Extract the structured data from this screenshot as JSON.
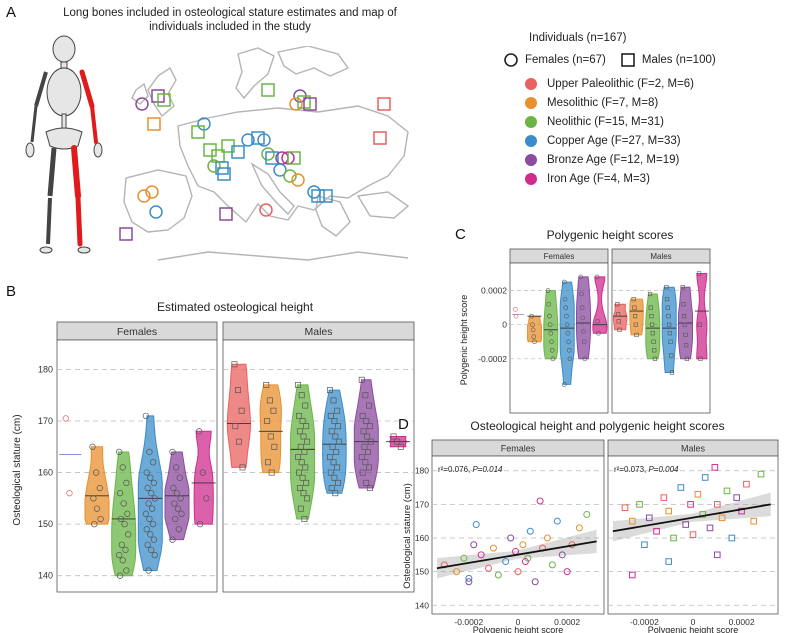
{
  "panel_a": {
    "letter": "A",
    "title_line1": "Long bones included in osteological stature estimates and map of",
    "title_line2": "individuals included in the study"
  },
  "legend": {
    "title": "Individuals (n=167)",
    "females": "Females (n=67)",
    "males": "Males (n=100)",
    "periods": [
      {
        "label": "Upper Paleolithic (F=2, M=6)",
        "color": "#e8615f"
      },
      {
        "label": "Mesolithic (F=7, M=8)",
        "color": "#e8902e"
      },
      {
        "label": "Neolithic (F=15, M=31)",
        "color": "#6ab545"
      },
      {
        "label": "Copper Age (F=27, M=33)",
        "color": "#3b8dc9"
      },
      {
        "label": "Bronze Age (F=12, M=19)",
        "color": "#8b4b9e"
      },
      {
        "label": "Iron Age (F=4, M=3)",
        "color": "#cf2d8e"
      }
    ]
  },
  "panel_b": {
    "letter": "B",
    "title": "Estimated osteological height",
    "facets": [
      "Females",
      "Males"
    ],
    "ylabel": "Osteological stature (cm)",
    "yticks": [
      "180",
      "170",
      "160",
      "150",
      "140"
    ]
  },
  "panel_c": {
    "letter": "C",
    "title": "Polygenic height scores",
    "facets": [
      "Females",
      "Males"
    ],
    "ylabel": "Polygenic height score",
    "yticks": [
      "0.0002",
      "0",
      "-0.0002"
    ]
  },
  "panel_d": {
    "letter": "D",
    "title": "Osteological height and polygenic height scores",
    "facets": [
      "Females",
      "Males"
    ],
    "ylabel": "Osteological stature (cm)",
    "xlabel": "Polygenic height score",
    "yticks": [
      "180",
      "170",
      "160",
      "150",
      "140"
    ],
    "xticks": [
      "-0.0002",
      "0",
      "0.0002"
    ],
    "stats_f_prefix": "r²=0.076, ",
    "stats_f_p": "P=0.014",
    "stats_m_prefix": "r²=0.073, ",
    "stats_m_p": "P=0.004"
  },
  "chart_data": [
    {
      "type": "violin",
      "title": "Estimated osteological height",
      "ylabel": "Osteological stature (cm)",
      "ylim": [
        138,
        183
      ],
      "facets": [
        {
          "name": "Females",
          "groups": [
            {
              "period": "Upper Paleolithic",
              "median": 163.5,
              "points": [
                170.5,
                156
              ]
            },
            {
              "period": "Mesolithic",
              "median": 155.5,
              "points": [
                165,
                160,
                157,
                155,
                153,
                151,
                150
              ]
            },
            {
              "period": "Neolithic",
              "median": 151,
              "points": [
                164,
                161,
                158,
                156,
                154,
                152,
                151,
                150,
                148,
                146,
                145,
                144,
                143,
                141,
                140
              ]
            },
            {
              "period": "Copper Age",
              "median": 155,
              "points": [
                171,
                164,
                162,
                160,
                159,
                158,
                157,
                156,
                155,
                154,
                153,
                152,
                151,
                150,
                149,
                148,
                147,
                146,
                145,
                144,
                141
              ]
            },
            {
              "period": "Bronze Age",
              "median": 155.5,
              "points": [
                164,
                161,
                159,
                157,
                156,
                155,
                154,
                153,
                152,
                151,
                149,
                147
              ]
            },
            {
              "period": "Iron Age",
              "median": 158,
              "points": [
                168,
                160,
                155,
                150
              ]
            }
          ]
        },
        {
          "name": "Males",
          "groups": [
            {
              "period": "Upper Paleolithic",
              "median": 169.5,
              "points": [
                181,
                176,
                172,
                169,
                166,
                161
              ]
            },
            {
              "period": "Mesolithic",
              "median": 168,
              "points": [
                177,
                174,
                172,
                170,
                167,
                165,
                162,
                160
              ]
            },
            {
              "period": "Neolithic",
              "median": 164.5,
              "points": [
                177,
                175,
                173,
                171,
                170,
                169,
                168,
                167,
                166,
                165,
                164,
                163,
                162,
                161,
                160,
                159,
                158,
                157,
                156,
                155,
                153,
                151
              ]
            },
            {
              "period": "Copper Age",
              "median": 165.5,
              "points": [
                176,
                174,
                172,
                171,
                170,
                169,
                168,
                167,
                166,
                165,
                164,
                163,
                162,
                161,
                160,
                159,
                158,
                157,
                156
              ]
            },
            {
              "period": "Bronze Age",
              "median": 166,
              "points": [
                178,
                175,
                173,
                171,
                170,
                169,
                168,
                167,
                166,
                165,
                164,
                163,
                162,
                161,
                160,
                158,
                157
              ]
            },
            {
              "period": "Iron Age",
              "median": 166,
              "points": [
                167,
                166,
                165
              ]
            }
          ]
        }
      ]
    },
    {
      "type": "violin",
      "title": "Polygenic height scores",
      "ylabel": "Polygenic height score",
      "ylim": [
        -0.0005,
        0.00035
      ],
      "facets": [
        {
          "name": "Females",
          "groups": [
            {
              "period": "Upper Paleolithic",
              "median": 6e-05,
              "points": [
                9e-05,
                5e-05
              ]
            },
            {
              "period": "Mesolithic",
              "median": 5e-05,
              "points": [
                5e-05,
                0.0,
                -3e-05,
                -7e-05,
                -0.0001
              ]
            },
            {
              "period": "Neolithic",
              "median": -3e-05,
              "points": [
                0.0002,
                0.00012,
                5e-05,
                0.0,
                -5e-05,
                -0.0001,
                -0.00015,
                -0.0002
              ]
            },
            {
              "period": "Copper Age",
              "median": -2e-05,
              "points": [
                0.00025,
                0.00015,
                0.0001,
                5e-05,
                0.0,
                -5e-05,
                -0.0001,
                -0.00015,
                -0.0002,
                -0.00035
              ]
            },
            {
              "period": "Bronze Age",
              "median": 1e-05,
              "points": [
                0.00028,
                0.00018,
                0.0001,
                4e-05,
                -4e-05,
                -0.0001,
                -0.0002
              ]
            },
            {
              "period": "Iron Age",
              "median": 0.0,
              "points": [
                0.00028,
                2e-05,
                -5e-05
              ]
            }
          ]
        },
        {
          "name": "Males",
          "groups": [
            {
              "period": "Upper Paleolithic",
              "median": 5e-05,
              "points": [
                0.00012,
                6e-05,
                2e-05,
                -3e-05
              ]
            },
            {
              "period": "Mesolithic",
              "median": 8e-05,
              "points": [
                0.00015,
                0.0001,
                5e-05,
                0.0,
                -6e-05
              ]
            },
            {
              "period": "Neolithic",
              "median": -2e-05,
              "points": [
                0.00018,
                0.0001,
                5e-05,
                0.0,
                -5e-05,
                -0.0001,
                -0.00015,
                -0.0002
              ]
            },
            {
              "period": "Copper Age",
              "median": -2e-05,
              "points": [
                0.00022,
                0.00015,
                0.0001,
                5e-05,
                0.0,
                -5e-05,
                -0.0001,
                -0.00018,
                -0.00028
              ]
            },
            {
              "period": "Bronze Age",
              "median": 1e-05,
              "points": [
                0.00022,
                0.00012,
                5e-05,
                0.0,
                -6e-05,
                -0.00012,
                -0.0002
              ]
            },
            {
              "period": "Iron Age",
              "median": 8e-05,
              "points": [
                0.0003,
                0.0,
                -0.0002
              ]
            }
          ]
        }
      ]
    },
    {
      "type": "scatter",
      "title": "Osteological height and polygenic height scores",
      "xlabel": "Polygenic height score",
      "ylabel": "Osteological stature (cm)",
      "xlim": [
        -0.00035,
        0.00035
      ],
      "ylim": [
        138,
        182
      ],
      "facets": [
        {
          "name": "Females",
          "r2": 0.076,
          "p": 0.014,
          "fit": [
            [
              -0.00033,
              151.0
            ],
            [
              0.00032,
              159.0
            ]
          ],
          "points": [
            [
              -0.0003,
              152
            ],
            [
              -0.00025,
              150
            ],
            [
              -0.00022,
              154
            ],
            [
              -0.0002,
              148
            ],
            [
              -0.00018,
              158
            ],
            [
              -0.00015,
              155
            ],
            [
              -0.00012,
              151
            ],
            [
              -0.0001,
              157
            ],
            [
              -8e-05,
              149
            ],
            [
              -5e-05,
              153
            ],
            [
              -3e-05,
              160
            ],
            [
              -1e-05,
              156
            ],
            [
              0.0,
              150
            ],
            [
              2e-05,
              158
            ],
            [
              4e-05,
              154
            ],
            [
              5e-05,
              162
            ],
            [
              7e-05,
              147
            ],
            [
              9e-05,
              171
            ],
            [
              0.0001,
              157
            ],
            [
              0.00012,
              160
            ],
            [
              0.00014,
              152
            ],
            [
              0.00016,
              165
            ],
            [
              0.00018,
              155
            ],
            [
              0.0002,
              150
            ],
            [
              0.00022,
              158
            ],
            [
              0.00025,
              163
            ],
            [
              0.00028,
              167
            ],
            [
              -0.00017,
              164
            ],
            [
              -0.0002,
              147
            ],
            [
              3e-05,
              153
            ]
          ]
        },
        {
          "name": "Males",
          "r2": 0.073,
          "p": 0.004,
          "fit": [
            [
              -0.00033,
              162.0
            ],
            [
              0.00032,
              170.0
            ]
          ],
          "points": [
            [
              -0.00028,
              169
            ],
            [
              -0.00025,
              165
            ],
            [
              -0.00022,
              170
            ],
            [
              -0.0002,
              158
            ],
            [
              -0.00018,
              166
            ],
            [
              -0.00015,
              162
            ],
            [
              -0.00012,
              172
            ],
            [
              -0.0001,
              168
            ],
            [
              -8e-05,
              160
            ],
            [
              -5e-05,
              175
            ],
            [
              -3e-05,
              164
            ],
            [
              -1e-05,
              170
            ],
            [
              0.0,
              161
            ],
            [
              2e-05,
              173
            ],
            [
              4e-05,
              167
            ],
            [
              5e-05,
              178
            ],
            [
              7e-05,
              163
            ],
            [
              9e-05,
              181
            ],
            [
              0.0001,
              170
            ],
            [
              0.00012,
              166
            ],
            [
              0.00014,
              174
            ],
            [
              0.00016,
              160
            ],
            [
              0.00018,
              172
            ],
            [
              0.0002,
              168
            ],
            [
              0.00022,
              176
            ],
            [
              0.00025,
              165
            ],
            [
              0.00028,
              179
            ],
            [
              -0.0001,
              153
            ],
            [
              0.0001,
              155
            ],
            [
              -0.00025,
              149
            ]
          ]
        }
      ]
    }
  ]
}
